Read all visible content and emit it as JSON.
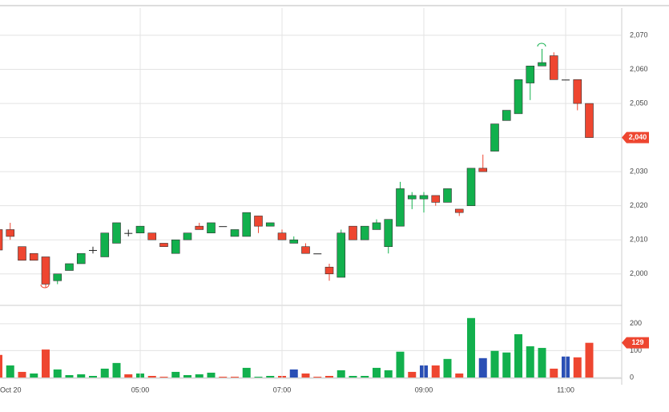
{
  "chart_data": [
    {
      "type": "candlestick",
      "open": [
        2013,
        2013,
        2008,
        2006,
        2005,
        1998,
        2001,
        2003,
        2007,
        2005,
        2009,
        2012,
        2012,
        2012,
        2009,
        2006,
        2010,
        2014,
        2012,
        2014,
        2011,
        2011,
        2017,
        2014,
        2012,
        2009,
        2008,
        2006,
        2002,
        1999,
        2014,
        2010,
        2013,
        2008,
        2014,
        2022,
        2022,
        2023,
        2021,
        2019,
        2020,
        2031,
        2036,
        2045,
        2047,
        2056,
        2061,
        2064,
        2057,
        2057,
        2050
      ],
      "high": [
        2013,
        2015,
        2008,
        2006,
        2005,
        2000,
        2003,
        2006,
        2008,
        2012,
        2015,
        2013,
        2014,
        2012,
        2009,
        2010,
        2012,
        2015,
        2015,
        2014,
        2013,
        2018,
        2017,
        2015,
        2013,
        2011,
        2009,
        2006,
        2003,
        2013,
        2014,
        2014,
        2016,
        2016,
        2027,
        2024,
        2024,
        2023,
        2025,
        2019,
        2031,
        2035,
        2044,
        2048,
        2057,
        2061,
        2066,
        2065,
        2057,
        2057,
        2050
      ],
      "low": [
        2004,
        2010,
        2004,
        2004,
        1996,
        1997,
        2001,
        2003,
        2006,
        2005,
        2009,
        2011,
        2012,
        2010,
        2008,
        2006,
        2010,
        2013,
        2012,
        2014,
        2011,
        2011,
        2012,
        2014,
        2010,
        2009,
        2006,
        2006,
        1998,
        1999,
        2010,
        2010,
        2013,
        2006,
        2014,
        2019,
        2018,
        2020,
        2021,
        2017,
        2020,
        2030,
        2036,
        2045,
        2047,
        2051,
        2061,
        2057,
        2057,
        2048,
        2040
      ],
      "close": [
        2007,
        2011,
        2004,
        2004,
        1997,
        2000,
        2003,
        2006,
        2007,
        2012,
        2015,
        2012,
        2014,
        2010,
        2008,
        2010,
        2012,
        2013,
        2015,
        2014,
        2013,
        2018,
        2014,
        2015,
        2010,
        2010,
        2006,
        2006,
        2000,
        2012,
        2010,
        2014,
        2015,
        2016,
        2025,
        2023,
        2023,
        2021,
        2025,
        2018,
        2031,
        2030,
        2044,
        2048,
        2057,
        2061,
        2062,
        2057,
        2057,
        2050,
        2040
      ],
      "up_color": "#12b04d",
      "down_color": "#ee4630",
      "ylim": [
        1991,
        2078
      ],
      "yticks": [
        {
          "value": 2000,
          "label": "2,000"
        },
        {
          "value": 2010,
          "label": "2,010"
        },
        {
          "value": 2020,
          "label": "2,020"
        },
        {
          "value": 2030,
          "label": "2,030"
        },
        {
          "value": 2040,
          "label": "2,040"
        },
        {
          "value": 2050,
          "label": "2,050"
        },
        {
          "value": 2060,
          "label": "2,060"
        },
        {
          "value": 2070,
          "label": "2,070"
        }
      ],
      "last_price": {
        "value": 2040,
        "label": "2,040"
      },
      "grid": true
    },
    {
      "type": "bar",
      "categories": [
        "Oct 20",
        null,
        null,
        null,
        null,
        null,
        null,
        null,
        null,
        null,
        null,
        null,
        "05:00",
        null,
        null,
        null,
        null,
        null,
        null,
        null,
        null,
        null,
        null,
        null,
        "07:00",
        null,
        null,
        null,
        null,
        null,
        null,
        null,
        null,
        null,
        null,
        null,
        "09:00",
        null,
        null,
        null,
        null,
        null,
        null,
        null,
        null,
        null,
        null,
        null,
        "11:00",
        null,
        null
      ],
      "values": [
        84,
        45,
        21,
        15,
        104,
        30,
        9,
        12,
        6,
        33,
        54,
        12,
        15,
        6,
        3,
        21,
        9,
        12,
        18,
        3,
        3,
        36,
        3,
        6,
        6,
        30,
        15,
        3,
        6,
        27,
        6,
        6,
        36,
        27,
        96,
        21,
        45,
        45,
        69,
        15,
        221,
        72,
        99,
        93,
        161,
        116,
        110,
        33,
        78,
        75,
        129
      ],
      "colors": [
        "#ee4630",
        "#12b04d",
        "#ee4630",
        "#12b04d",
        "#ee4630",
        "#12b04d",
        "#12b04d",
        "#12b04d",
        "#12b04d",
        "#12b04d",
        "#12b04d",
        "#ee4630",
        "#12b04d",
        "#ee4630",
        "#ee4630",
        "#12b04d",
        "#12b04d",
        "#12b04d",
        "#12b04d",
        "#ee4630",
        "#ee4630",
        "#12b04d",
        "#12b04d",
        "#12b04d",
        "#ee4630",
        "#2a4fb5",
        "#ee4630",
        "#ee4630",
        "#ee4630",
        "#12b04d",
        "#12b04d",
        "#12b04d",
        "#12b04d",
        "#12b04d",
        "#12b04d",
        "#ee4630",
        "#2a4fb5",
        "#ee4630",
        "#12b04d",
        "#ee4630",
        "#12b04d",
        "#2a4fb5",
        "#12b04d",
        "#12b04d",
        "#12b04d",
        "#12b04d",
        "#12b04d",
        "#ee4630",
        "#2a4fb5",
        "#ee4630",
        "#ee4630"
      ],
      "ylim": [
        0,
        265
      ],
      "yticks": [
        0,
        100,
        200
      ],
      "grid": true
    }
  ]
}
